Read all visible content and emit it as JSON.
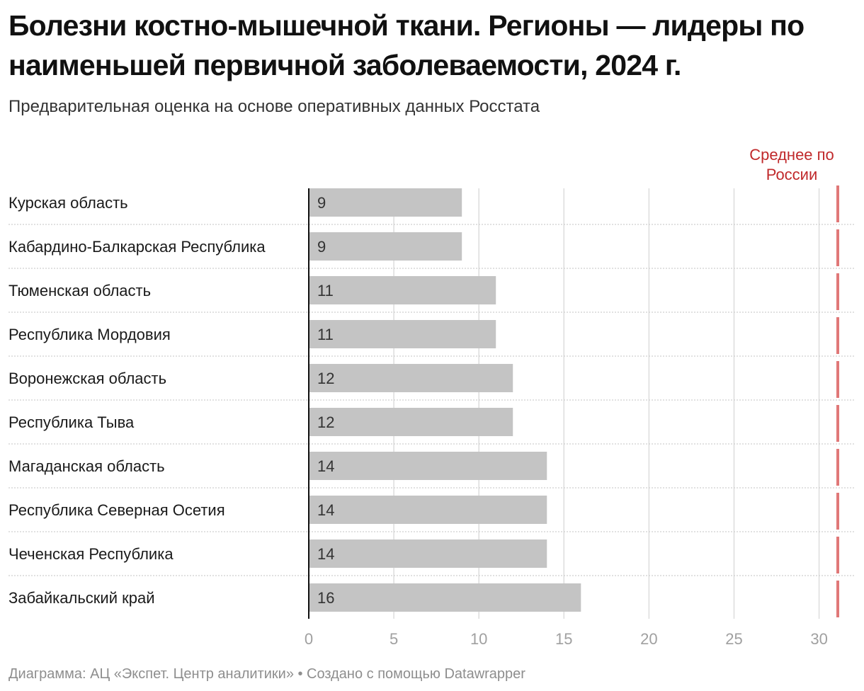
{
  "title": "Болезни костно-мышечной ткани. Регионы — лидеры по наименьшей первичной заболеваемости, 2024 г.",
  "subtitle": "Предварительная оценка на основе оперативных данных Росстата",
  "footer": "Диаграмма: АЦ «Экспет. Центр аналитики» • Создано с помощью Datawrapper",
  "colors": {
    "bar": "#c4c4c4",
    "reference_line": "#e07878",
    "reference_label": "#c0292b",
    "grid": "#dddddd",
    "axis_text": "#a0a0a0"
  },
  "chart_data": {
    "type": "bar",
    "orientation": "horizontal",
    "categories": [
      "Курская область",
      "Кабардино-Балкарская Республика",
      "Тюменская область",
      "Республика Мордовия",
      "Воронежская область",
      "Республика Тыва",
      "Магаданская область",
      "Республика Северная Осетия",
      "Чеченская Республика",
      "Забайкальский край"
    ],
    "values": [
      9,
      9,
      11,
      11,
      12,
      12,
      14,
      14,
      14,
      16
    ],
    "value_labels": [
      "9",
      "9",
      "11",
      "11",
      "12",
      "12",
      "14",
      "14",
      "14",
      "16"
    ],
    "xlim": [
      0,
      31
    ],
    "xticks": [
      0,
      5,
      10,
      15,
      20,
      25,
      30
    ],
    "xtick_labels": [
      "0",
      "5",
      "10",
      "15",
      "20",
      "25",
      "30"
    ],
    "grid": true,
    "reference_line": {
      "value": 31.1,
      "label_lines": [
        "Среднее по",
        "России"
      ]
    }
  }
}
